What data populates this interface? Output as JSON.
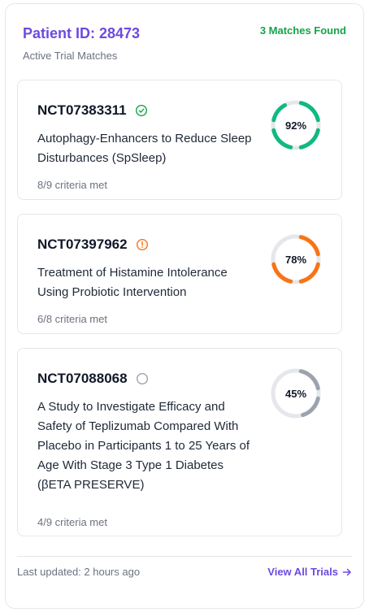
{
  "header": {
    "patient_title": "Patient ID: 28473",
    "matches": "3 Matches Found",
    "subtitle": "Active Trial Matches"
  },
  "trials": [
    {
      "id": "NCT07383311",
      "title": "Autophagy-Enhancers to Reduce Sleep Disturbances (SpSleep)",
      "criteria": "8/9 criteria met",
      "match_label": "92%",
      "match_value": 92,
      "status_icon": "check-circle-icon",
      "color": "#10b981"
    },
    {
      "id": "NCT07397962",
      "title": "Treatment of Histamine Intolerance Using Probiotic Intervention",
      "criteria": "6/8 criteria met",
      "match_label": "78%",
      "match_value": 78,
      "status_icon": "alert-circle-icon",
      "color": "#f97316"
    },
    {
      "id": "NCT07088068",
      "title": "A Study to Investigate Efficacy and Safety of Teplizumab Compared With Placebo in Participants 1 to 25 Years of Age With Stage 3 Type 1 Diabetes (βETA PRESERVE)",
      "criteria": "4/9 criteria met",
      "match_label": "45%",
      "match_value": 45,
      "status_icon": "empty-circle-icon",
      "color": "#9ca3af"
    }
  ],
  "footer": {
    "updated": "Last updated: 2 hours ago",
    "view_all": "View All Trials"
  }
}
